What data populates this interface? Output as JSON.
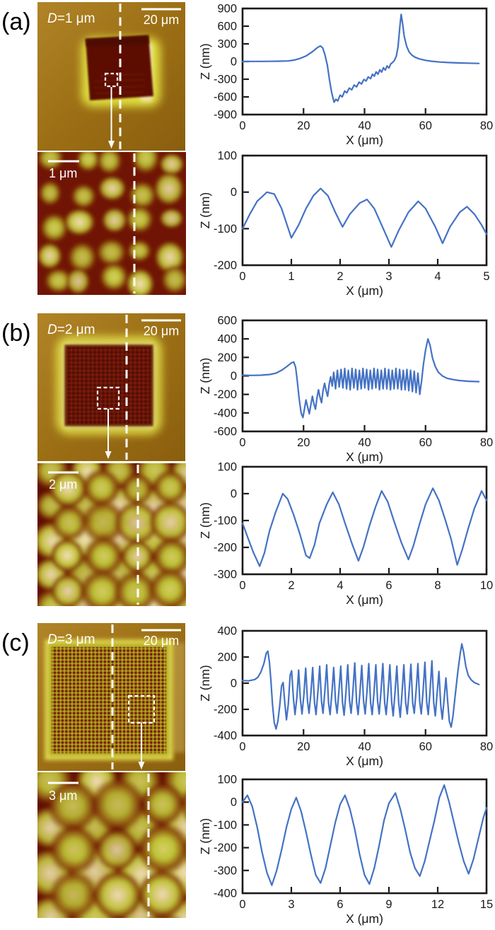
{
  "figure": {
    "panels": [
      {
        "label": "(a)",
        "afm_overview": {
          "annotation_var": "D",
          "annotation_rest": "=1 μm",
          "scale_bar": "20 μm"
        },
        "afm_zoom": {
          "scale_bar": "1 μm"
        }
      },
      {
        "label": "(b)",
        "afm_overview": {
          "annotation_var": "D",
          "annotation_rest": "=2 μm",
          "scale_bar": "20 μm"
        },
        "afm_zoom": {
          "scale_bar": "2 μm"
        }
      },
      {
        "label": "(c)",
        "afm_overview": {
          "annotation_var": "D",
          "annotation_rest": "=3 μm",
          "scale_bar": "20 μm"
        },
        "afm_zoom": {
          "scale_bar": "3 μm"
        }
      }
    ],
    "line_color": "#4472c4",
    "axis_color": "#1a1a1a"
  },
  "chart_data": [
    {
      "type": "line",
      "panel": "a",
      "position": "top",
      "name": "profile-chart-a-wide",
      "xlabel": "X (μm)",
      "ylabel": "Z (nm)",
      "xlim": [
        0,
        80
      ],
      "ylim": [
        -900,
        900
      ],
      "xticks": [
        0,
        20,
        40,
        60,
        80
      ],
      "yticks": [
        900,
        600,
        300,
        0,
        -300,
        -600,
        -900
      ],
      "grid": false,
      "legend": "none",
      "series": [
        {
          "name": "Z profile",
          "x": [
            0,
            3,
            6,
            9,
            12,
            15,
            17,
            19,
            21,
            23,
            24.5,
            25.5,
            26.3,
            27,
            27.8,
            28.5,
            29.2,
            30,
            30.6,
            31.2,
            32,
            32.7,
            33.5,
            34.2,
            35,
            35.8,
            36.6,
            37.4,
            38.2,
            39,
            39.8,
            40.5,
            41.2,
            42,
            42.6,
            43.2,
            43.8,
            44.4,
            45,
            45.6,
            46.2,
            46.8,
            47.4,
            48,
            48.6,
            49.2,
            49.8,
            50.4,
            51,
            51.6,
            52,
            52.5,
            53,
            53.8,
            54.6,
            55.5,
            56.5,
            58,
            60,
            62,
            65,
            68,
            71,
            74,
            77.5
          ],
          "y": [
            0,
            2,
            3,
            4,
            6,
            10,
            25,
            55,
            100,
            170,
            235,
            265,
            230,
            120,
            -60,
            -310,
            -520,
            -690,
            -640,
            -670,
            -570,
            -600,
            -500,
            -530,
            -450,
            -480,
            -400,
            -430,
            -350,
            -380,
            -305,
            -330,
            -260,
            -290,
            -215,
            -250,
            -175,
            -215,
            -140,
            -180,
            -105,
            -145,
            -75,
            -110,
            -40,
            -15,
            20,
            90,
            250,
            600,
            800,
            640,
            430,
            260,
            165,
            110,
            75,
            45,
            20,
            5,
            -10,
            -18,
            -24,
            -28,
            -32
          ]
        }
      ]
    },
    {
      "type": "line",
      "panel": "a",
      "position": "bottom",
      "name": "profile-chart-a-zoom",
      "xlabel": "X (μm)",
      "ylabel": "Z (nm)",
      "xlim": [
        0,
        5
      ],
      "ylim": [
        -200,
        100
      ],
      "xticks": [
        0,
        1,
        2,
        3,
        4,
        5
      ],
      "yticks": [
        100,
        0,
        -100,
        -200
      ],
      "grid": false,
      "legend": "none",
      "series": [
        {
          "name": "Z profile",
          "x": [
            0,
            0.15,
            0.3,
            0.5,
            0.65,
            0.8,
            1.0,
            1.15,
            1.3,
            1.45,
            1.6,
            1.75,
            1.9,
            2.05,
            2.2,
            2.4,
            2.55,
            2.7,
            2.85,
            3.05,
            3.2,
            3.4,
            3.6,
            3.75,
            3.95,
            4.1,
            4.25,
            4.45,
            4.6,
            4.75,
            4.9,
            5.0
          ],
          "y": [
            -100,
            -60,
            -25,
            0,
            -5,
            -45,
            -125,
            -90,
            -45,
            -10,
            10,
            -10,
            -55,
            -95,
            -60,
            -30,
            -20,
            -45,
            -90,
            -150,
            -105,
            -55,
            -25,
            -45,
            -95,
            -140,
            -95,
            -55,
            -40,
            -60,
            -90,
            -115
          ]
        }
      ]
    },
    {
      "type": "line",
      "panel": "b",
      "position": "top",
      "name": "profile-chart-b-wide",
      "xlabel": "X (μm)",
      "ylabel": "Z (nm)",
      "xlim": [
        0,
        80
      ],
      "ylim": [
        -600,
        600
      ],
      "xticks": [
        0,
        20,
        40,
        60,
        80
      ],
      "yticks": [
        600,
        400,
        200,
        0,
        -200,
        -400,
        -600
      ],
      "grid": false,
      "legend": "none",
      "series": [
        {
          "name": "Z profile",
          "x": [
            0,
            3,
            6,
            9,
            11,
            13,
            14.5,
            16,
            16.8,
            17.4,
            17.9,
            18.5,
            19.2,
            19.8,
            20.3,
            20.8,
            21.3,
            21.9,
            22.4,
            22.9,
            23.4,
            23.9,
            24.4,
            24.9,
            25.4,
            25.9,
            26.4,
            26.9,
            27.4,
            27.9,
            28.4,
            28.9,
            29.4,
            29.9,
            30.5,
            31.1,
            31.7,
            32.3,
            32.9,
            33.5,
            34.1,
            34.7,
            35.3,
            35.9,
            36.5,
            37.1,
            37.7,
            38.3,
            38.9,
            39.5,
            40.1,
            40.7,
            41.3,
            41.9,
            42.5,
            43.1,
            43.7,
            44.3,
            44.9,
            45.5,
            46.1,
            46.7,
            47.3,
            47.9,
            48.5,
            49.1,
            49.7,
            50.3,
            50.9,
            51.5,
            52.1,
            52.7,
            53.3,
            53.9,
            54.5,
            55.1,
            55.7,
            56.3,
            56.9,
            57.5,
            58.1,
            58.7,
            59.3,
            60,
            60.8,
            61.5,
            62.3,
            63.2,
            64.2,
            65.5,
            67,
            69,
            71,
            74,
            77.5
          ],
          "y": [
            8,
            5,
            8,
            15,
            30,
            65,
            100,
            140,
            150,
            95,
            -40,
            -230,
            -400,
            -450,
            -360,
            -260,
            -330,
            -410,
            -310,
            -220,
            -300,
            -360,
            -240,
            -150,
            -230,
            -290,
            -160,
            -80,
            -160,
            -220,
            -90,
            -10,
            -110,
            40,
            -140,
            60,
            -120,
            70,
            -130,
            80,
            -140,
            60,
            -150,
            80,
            -130,
            70,
            -150,
            60,
            -140,
            80,
            -130,
            70,
            -150,
            60,
            -140,
            80,
            -130,
            70,
            -150,
            60,
            -140,
            80,
            -140,
            70,
            -150,
            60,
            -140,
            80,
            -140,
            70,
            -150,
            60,
            -150,
            70,
            -160,
            60,
            -170,
            50,
            -180,
            30,
            -200,
            -60,
            120,
            280,
            400,
            330,
            190,
            100,
            40,
            0,
            -25,
            -40,
            -50,
            -58,
            -62
          ]
        }
      ]
    },
    {
      "type": "line",
      "panel": "b",
      "position": "bottom",
      "name": "profile-chart-b-zoom",
      "xlabel": "X (μm)",
      "ylabel": "Z (nm)",
      "xlim": [
        0,
        10
      ],
      "ylim": [
        -300,
        100
      ],
      "xticks": [
        0,
        2,
        4,
        6,
        8,
        10
      ],
      "yticks": [
        100,
        0,
        -100,
        -200,
        -300
      ],
      "grid": false,
      "legend": "none",
      "series": [
        {
          "name": "Z profile",
          "x": [
            0,
            0.2,
            0.45,
            0.7,
            0.9,
            1.1,
            1.35,
            1.65,
            1.85,
            2.1,
            2.35,
            2.6,
            2.75,
            2.95,
            3.15,
            3.45,
            3.7,
            3.95,
            4.2,
            4.5,
            4.75,
            4.95,
            5.2,
            5.45,
            5.7,
            5.95,
            6.2,
            6.5,
            6.8,
            7.0,
            7.25,
            7.5,
            7.8,
            8.05,
            8.3,
            8.55,
            8.8,
            9.0,
            9.25,
            9.5,
            9.8,
            10.0
          ],
          "y": [
            -110,
            -160,
            -220,
            -270,
            -220,
            -140,
            -70,
            0,
            -20,
            -80,
            -150,
            -230,
            -240,
            -190,
            -110,
            -40,
            5,
            -40,
            -110,
            -190,
            -250,
            -200,
            -120,
            -50,
            10,
            -30,
            -100,
            -180,
            -245,
            -195,
            -115,
            -40,
            20,
            -25,
            -95,
            -170,
            -265,
            -210,
            -130,
            -55,
            10,
            -25
          ]
        }
      ]
    },
    {
      "type": "line",
      "panel": "c",
      "position": "top",
      "name": "profile-chart-c-wide",
      "xlabel": "X (μm)",
      "ylabel": "Z (nm)",
      "xlim": [
        0,
        80
      ],
      "ylim": [
        -400,
        400
      ],
      "xticks": [
        0,
        20,
        40,
        60,
        80
      ],
      "yticks": [
        400,
        200,
        0,
        -200,
        -400
      ],
      "grid": false,
      "legend": "none",
      "series": [
        {
          "name": "Z profile",
          "x": [
            0,
            2,
            4,
            5,
            6,
            7,
            7.8,
            8.3,
            8.8,
            9.3,
            9.8,
            10.4,
            11,
            11.6,
            12.2,
            12.8,
            13.3,
            13.9,
            14.4,
            15,
            15.6,
            16.1,
            16.7,
            17.2,
            17.8,
            18.4,
            19,
            19.5,
            20.1,
            20.7,
            21.3,
            21.8,
            22.4,
            23,
            23.6,
            24.1,
            24.7,
            25.3,
            25.9,
            26.4,
            27,
            27.6,
            28.2,
            28.7,
            29.3,
            29.9,
            30.5,
            31,
            31.6,
            32.2,
            32.8,
            33.3,
            33.9,
            34.5,
            35.1,
            35.6,
            36.2,
            36.8,
            37.4,
            37.9,
            38.5,
            39.1,
            39.7,
            40.2,
            40.8,
            41.4,
            42,
            42.5,
            43.1,
            43.7,
            44.3,
            44.8,
            45.4,
            46,
            46.6,
            47.1,
            47.7,
            48.3,
            48.9,
            49.4,
            50,
            50.6,
            51.2,
            51.7,
            52.3,
            52.9,
            53.5,
            54,
            54.6,
            55.2,
            55.8,
            56.3,
            56.9,
            57.5,
            58.1,
            58.6,
            59.2,
            59.8,
            60.4,
            60.9,
            61.5,
            62.1,
            62.7,
            63.2,
            63.8,
            64.4,
            65,
            65.5,
            66.1,
            66.7,
            67.2,
            67.8,
            68.4,
            69,
            69.8,
            70.6,
            71.4,
            71.9,
            72.5,
            73.2,
            74,
            75,
            76,
            77.5
          ],
          "y": [
            20,
            18,
            28,
            45,
            85,
            150,
            230,
            245,
            160,
            20,
            -160,
            -300,
            -350,
            -290,
            -170,
            -20,
            5,
            -160,
            -280,
            -160,
            60,
            95,
            -120,
            -240,
            -110,
            100,
            -130,
            -235,
            -90,
            115,
            -140,
            -230,
            -80,
            120,
            -150,
            -240,
            -70,
            130,
            -140,
            -230,
            -60,
            140,
            -150,
            -240,
            -70,
            120,
            -140,
            -230,
            -60,
            130,
            -150,
            -245,
            -70,
            140,
            -140,
            -230,
            -60,
            155,
            -150,
            -240,
            -70,
            135,
            -140,
            -235,
            -60,
            150,
            -150,
            -240,
            -70,
            140,
            -140,
            -235,
            -60,
            150,
            -150,
            -240,
            -70,
            140,
            -145,
            -250,
            -70,
            130,
            -150,
            -260,
            -75,
            140,
            -150,
            -235,
            -65,
            145,
            -150,
            -230,
            -60,
            150,
            -145,
            -235,
            -60,
            160,
            -150,
            -240,
            -55,
            170,
            -150,
            -250,
            -80,
            90,
            -170,
            -275,
            -120,
            40,
            -120,
            -290,
            -335,
            -250,
            -80,
            90,
            230,
            300,
            235,
            130,
            60,
            25,
            5,
            -10
          ]
        }
      ]
    },
    {
      "type": "line",
      "panel": "c",
      "position": "bottom",
      "name": "profile-chart-c-zoom",
      "xlabel": "X (μm)",
      "ylabel": "Z (nm)",
      "xlim": [
        0,
        15
      ],
      "ylim": [
        -400,
        100
      ],
      "xticks": [
        0,
        3,
        6,
        9,
        12,
        15
      ],
      "yticks": [
        100,
        0,
        -100,
        -200,
        -300,
        -400
      ],
      "grid": false,
      "legend": "none",
      "series": [
        {
          "name": "Z profile",
          "x": [
            0,
            0.3,
            0.6,
            0.9,
            1.2,
            1.5,
            1.8,
            2.1,
            2.4,
            2.7,
            3.0,
            3.3,
            3.6,
            3.9,
            4.2,
            4.5,
            4.8,
            5.1,
            5.4,
            5.7,
            6.0,
            6.3,
            6.6,
            6.9,
            7.2,
            7.5,
            7.8,
            8.1,
            8.4,
            8.7,
            9.0,
            9.4,
            9.7,
            10.0,
            10.3,
            10.6,
            10.9,
            11.2,
            11.5,
            11.8,
            12.1,
            12.4,
            12.7,
            13.0,
            13.3,
            13.6,
            13.9,
            14.2,
            14.5,
            14.8,
            15.0
          ],
          "y": [
            0,
            30,
            -20,
            -110,
            -220,
            -310,
            -365,
            -300,
            -210,
            -110,
            -30,
            20,
            -40,
            -130,
            -230,
            -320,
            -355,
            -290,
            -190,
            -90,
            -10,
            30,
            -30,
            -120,
            -230,
            -320,
            -360,
            -290,
            -190,
            -80,
            -5,
            40,
            -30,
            -120,
            -220,
            -290,
            -325,
            -260,
            -170,
            -80,
            20,
            75,
            0,
            -90,
            -180,
            -260,
            -315,
            -250,
            -160,
            -70,
            -25
          ]
        }
      ]
    }
  ]
}
